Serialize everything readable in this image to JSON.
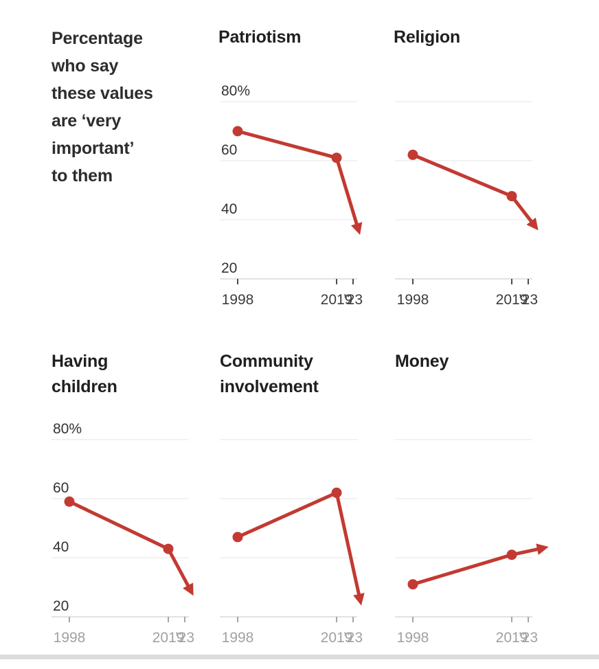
{
  "intro": {
    "text": "Percentage\nwho say\nthese values\nare ‘very\nimportant’\nto them"
  },
  "colors": {
    "accent_red": "#c23a32",
    "grid_line": "#e4e4e4",
    "axis_line": "#d9d9d9",
    "tick_dark": "#4a4a4a",
    "tick_gray": "#a6a6a6",
    "y_label": "#333333",
    "x_label_dark": "#3c3c3c",
    "x_label_gray": "#a1a1a1",
    "divider": "#dcdcdc"
  },
  "axis": {
    "ylim": [
      20,
      80
    ],
    "y_ticks": [
      80,
      60,
      40,
      20
    ],
    "y_tick_labels": [
      "80%",
      "60",
      "40",
      "20"
    ],
    "x_years": [
      1998,
      2019,
      2023
    ],
    "x_tick_labels": [
      "1998",
      "2019",
      "’23"
    ]
  },
  "chart_data": [
    {
      "type": "line",
      "title": "Patriotism",
      "x": [
        1998,
        2019,
        2023
      ],
      "values": [
        70,
        61,
        38
      ],
      "arrow_last": true,
      "show_y_labels": true,
      "x_label_style": "dark",
      "tip_x_frac": 1.0
    },
    {
      "type": "line",
      "title": "Religion",
      "x": [
        1998,
        2019,
        2023
      ],
      "values": [
        62,
        48,
        39
      ],
      "arrow_last": true,
      "show_y_labels": false,
      "x_label_style": "dark",
      "tip_x_frac": 1.0
    },
    {
      "type": "line",
      "title": "Having\nchildren",
      "x": [
        1998,
        2019,
        2023
      ],
      "values": [
        59,
        43,
        30
      ],
      "arrow_last": true,
      "show_y_labels": true,
      "x_label_style": "gray",
      "tip_x_frac": 1.0
    },
    {
      "type": "line",
      "title": "Community\ninvolvement",
      "x": [
        1998,
        2019,
        2023
      ],
      "values": [
        47,
        62,
        27
      ],
      "arrow_last": true,
      "show_y_labels": false,
      "x_label_style": "gray",
      "tip_x_frac": 1.015
    },
    {
      "type": "line",
      "title": "Money",
      "x": [
        1998,
        2019,
        2023
      ],
      "values": [
        31,
        41,
        43
      ],
      "arrow_last": true,
      "show_y_labels": false,
      "x_label_style": "gray",
      "tip_x_frac": 1.05
    }
  ]
}
